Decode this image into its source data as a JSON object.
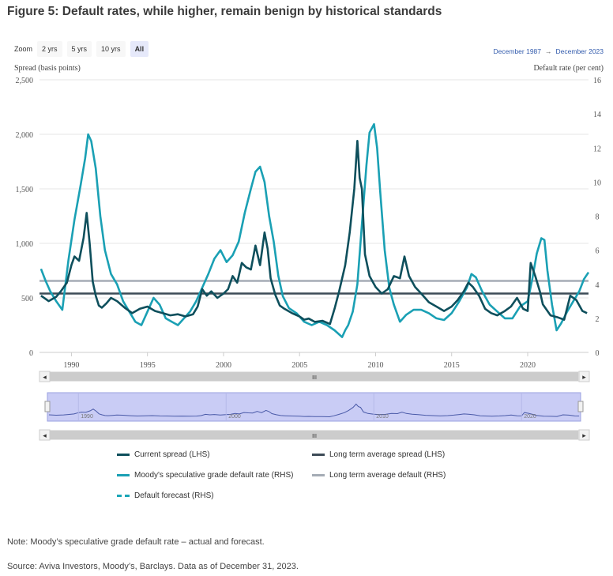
{
  "title": "Figure 5: Default rates, while higher, remain benign by historical standards",
  "zoom": {
    "label": "Zoom",
    "buttons": [
      {
        "label": "2 yrs",
        "active": false
      },
      {
        "label": "5 yrs",
        "active": false
      },
      {
        "label": "10 yrs",
        "active": false
      },
      {
        "label": "All",
        "active": true
      }
    ]
  },
  "range": {
    "from": "December 1987",
    "arrow": "→",
    "to": "December 2023"
  },
  "navigator": {
    "scroll_grip": "III",
    "left_arrow": "◂",
    "right_arrow": "▸"
  },
  "legend": [
    {
      "label": "Current spread (LHS)",
      "color": "#0e4f5c",
      "style": "solid"
    },
    {
      "label": "Long term average spread (LHS)",
      "color": "#3d4b57",
      "style": "solid"
    },
    {
      "label": "Moody's speculative grade default rate (RHS)",
      "color": "#1aa0b4",
      "style": "solid"
    },
    {
      "label": "Long term average default (RHS)",
      "color": "#a5acb5",
      "style": "solid"
    },
    {
      "label": "Default forecast (RHS)",
      "color": "#1aa6b7",
      "style": "dashed"
    }
  ],
  "notes": {
    "note": "Note: Moody’s speculative grade default rate – actual and forecast.",
    "source": "Source: Aviva Investors, Moody’s, Barclays. Data as of December 31, 2023."
  },
  "chart_data": {
    "type": "line",
    "title": "Figure 5: Default rates, while higher, remain benign by historical standards",
    "ylabel_left": "Spread (basis points)",
    "ylabel_right": "Default rate (per cent)",
    "y_left_ticks": [
      "0",
      "500",
      "1,000",
      "1,500",
      "2,000",
      "2,500"
    ],
    "y_right_ticks": [
      "0",
      "2",
      "4",
      "6",
      "8",
      "10",
      "12",
      "14",
      "16"
    ],
    "x_ticks": [
      "1990",
      "1995",
      "2000",
      "2005",
      "2010",
      "2015",
      "2020"
    ],
    "ylim_left": [
      0,
      2500
    ],
    "ylim_right": [
      0,
      16
    ],
    "xlim": [
      1987.9,
      2024.0
    ],
    "navigator_ticks": [
      "1990",
      "2000",
      "2010",
      "2020"
    ],
    "grid": true,
    "legend_position": "bottom",
    "long_term_average_spread": 540,
    "long_term_average_default": 4.2,
    "series": [
      {
        "name": "Current spread (LHS)",
        "axis": "left",
        "x": [
          1988.0,
          1988.5,
          1989.0,
          1989.3,
          1989.7,
          1990.0,
          1990.2,
          1990.5,
          1990.8,
          1991.0,
          1991.2,
          1991.4,
          1991.6,
          1991.8,
          1992.0,
          1992.3,
          1992.6,
          1993.0,
          1993.5,
          1994.0,
          1994.5,
          1995.0,
          1995.5,
          1996.0,
          1996.5,
          1997.0,
          1997.5,
          1998.0,
          1998.3,
          1998.6,
          1998.9,
          1999.2,
          1999.6,
          2000.0,
          2000.3,
          2000.6,
          2000.9,
          2001.2,
          2001.5,
          2001.8,
          2002.1,
          2002.4,
          2002.7,
          2002.9,
          2003.1,
          2003.4,
          2003.7,
          2004.0,
          2004.5,
          2005.0,
          2005.3,
          2005.6,
          2006.0,
          2006.5,
          2007.0,
          2007.3,
          2007.6,
          2008.0,
          2008.3,
          2008.6,
          2008.8,
          2008.95,
          2009.1,
          2009.3,
          2009.6,
          2010.0,
          2010.4,
          2010.8,
          2011.2,
          2011.6,
          2011.9,
          2012.2,
          2012.6,
          2013.0,
          2013.5,
          2014.0,
          2014.5,
          2015.0,
          2015.4,
          2015.8,
          2016.1,
          2016.4,
          2016.8,
          2017.2,
          2017.6,
          2018.0,
          2018.5,
          2018.9,
          2019.3,
          2019.7,
          2020.0,
          2020.2,
          2020.5,
          2020.8,
          2021.0,
          2021.5,
          2022.0,
          2022.4,
          2022.8,
          2023.2,
          2023.6,
          2023.9
        ],
        "values": [
          520,
          470,
          510,
          560,
          640,
          800,
          880,
          840,
          1050,
          1280,
          1000,
          650,
          520,
          430,
          410,
          450,
          500,
          470,
          410,
          360,
          400,
          420,
          380,
          360,
          340,
          350,
          330,
          350,
          420,
          580,
          520,
          560,
          500,
          540,
          580,
          700,
          640,
          820,
          780,
          760,
          980,
          800,
          1100,
          950,
          680,
          530,
          430,
          400,
          360,
          330,
          300,
          310,
          280,
          290,
          260,
          400,
          560,
          800,
          1100,
          1500,
          1940,
          1600,
          1500,
          900,
          700,
          600,
          540,
          580,
          700,
          680,
          880,
          700,
          600,
          540,
          460,
          420,
          380,
          420,
          480,
          560,
          640,
          600,
          520,
          400,
          360,
          340,
          380,
          420,
          500,
          400,
          380,
          820,
          700,
          560,
          440,
          340,
          320,
          300,
          520,
          480,
          380,
          360
        ]
      },
      {
        "name": "Moody's speculative grade default rate (RHS)",
        "axis": "right",
        "x": [
          1988.0,
          1988.3,
          1988.6,
          1989.0,
          1989.4,
          1989.8,
          1990.2,
          1990.6,
          1990.9,
          1991.1,
          1991.3,
          1991.6,
          1991.9,
          1992.2,
          1992.6,
          1993.0,
          1993.4,
          1993.8,
          1994.2,
          1994.6,
          1995.0,
          1995.4,
          1995.8,
          1996.2,
          1996.6,
          1997.0,
          1997.4,
          1997.8,
          1998.2,
          1998.6,
          1999.0,
          1999.4,
          1999.8,
          2000.2,
          2000.6,
          2001.0,
          2001.4,
          2001.8,
          2002.1,
          2002.4,
          2002.7,
          2003.0,
          2003.3,
          2003.6,
          2003.9,
          2004.3,
          2004.8,
          2005.3,
          2005.8,
          2006.3,
          2006.8,
          2007.3,
          2007.8,
          2008.0,
          2008.2,
          2008.5,
          2008.8,
          2009.1,
          2009.4,
          2009.6,
          2009.9,
          2010.1,
          2010.3,
          2010.6,
          2010.9,
          2011.2,
          2011.6,
          2012.0,
          2012.5,
          2013.0,
          2013.5,
          2014.0,
          2014.5,
          2015.0,
          2015.5,
          2016.0,
          2016.3,
          2016.6,
          2017.0,
          2017.5,
          2018.0,
          2018.5,
          2019.0,
          2019.5,
          2020.0,
          2020.3,
          2020.6,
          2020.9,
          2021.1,
          2021.3,
          2021.6,
          2021.9,
          2022.2,
          2022.6,
          2023.0,
          2023.4,
          2023.7,
          2024.0
        ],
        "values": [
          4.9,
          4.2,
          3.6,
          3.0,
          2.5,
          5.4,
          7.8,
          9.8,
          11.4,
          12.8,
          12.4,
          10.8,
          8.0,
          6.0,
          4.6,
          4.0,
          3.0,
          2.4,
          1.8,
          1.6,
          2.4,
          3.2,
          2.8,
          2.0,
          1.8,
          1.6,
          2.0,
          2.4,
          3.0,
          3.8,
          4.6,
          5.5,
          6.0,
          5.3,
          5.7,
          6.5,
          8.2,
          9.6,
          10.6,
          10.9,
          10.0,
          8.0,
          6.5,
          4.5,
          3.3,
          2.6,
          2.3,
          1.8,
          1.6,
          1.8,
          1.6,
          1.3,
          0.9,
          1.3,
          1.6,
          2.4,
          4.0,
          7.5,
          11.0,
          12.9,
          13.4,
          12.0,
          9.5,
          6.0,
          3.8,
          2.8,
          1.8,
          2.2,
          2.5,
          2.5,
          2.3,
          2.0,
          1.9,
          2.3,
          3.0,
          3.8,
          4.6,
          4.4,
          3.6,
          2.8,
          2.4,
          2.0,
          2.0,
          2.7,
          3.0,
          4.3,
          5.8,
          6.7,
          6.6,
          4.8,
          2.8,
          1.3,
          1.7,
          2.4,
          3.0,
          3.6,
          4.3,
          4.7
        ]
      }
    ]
  }
}
